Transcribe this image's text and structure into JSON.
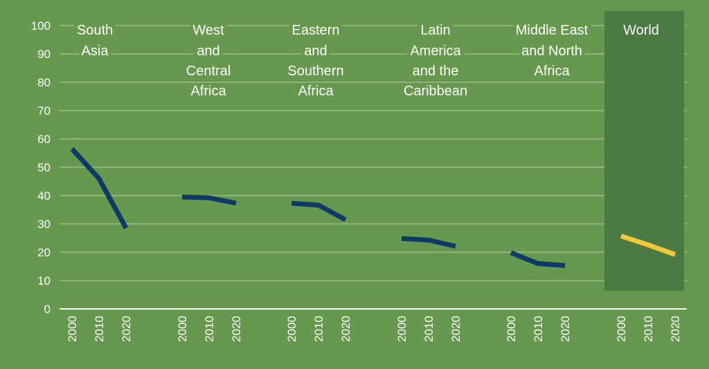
{
  "chart_data": {
    "type": "line",
    "title": "",
    "xlabel": "",
    "ylabel": "",
    "ylim": [
      0,
      100
    ],
    "yticks": [
      0,
      10,
      20,
      30,
      40,
      50,
      60,
      70,
      80,
      90,
      100
    ],
    "grid": true,
    "x": [
      "2000",
      "2010",
      "2020"
    ],
    "series": [
      {
        "name": "South Asia",
        "label_lines": [
          "South",
          "Asia"
        ],
        "values": [
          56.5,
          46,
          28.5
        ],
        "color": "#0d3b66",
        "highlight": false
      },
      {
        "name": "West and Central Africa",
        "label_lines": [
          "West",
          "and",
          "Central",
          "Africa"
        ],
        "values": [
          39.5,
          39.2,
          37.3
        ],
        "color": "#0d3b66",
        "highlight": false
      },
      {
        "name": "Eastern and Southern Africa",
        "label_lines": [
          "Eastern",
          "and",
          "Southern",
          "Africa"
        ],
        "values": [
          37.3,
          36.6,
          31.5
        ],
        "color": "#0d3b66",
        "highlight": false
      },
      {
        "name": "Latin America and the Caribbean",
        "label_lines": [
          "Latin",
          "America",
          "and the",
          "Caribbean"
        ],
        "values": [
          24.8,
          24.3,
          22.1
        ],
        "color": "#0d3b66",
        "highlight": false
      },
      {
        "name": "Middle East and North Africa",
        "label_lines": [
          "Middle East",
          "and North",
          "Africa"
        ],
        "values": [
          19.8,
          16.0,
          15.3
        ],
        "color": "#0d3b66",
        "highlight": false
      },
      {
        "name": "World",
        "label_lines": [
          "World"
        ],
        "values": [
          25.7,
          22.6,
          19.2
        ],
        "color": "#f2c83c",
        "highlight": true
      }
    ],
    "highlight_color": "#4b7b42",
    "background": "#66984e"
  }
}
